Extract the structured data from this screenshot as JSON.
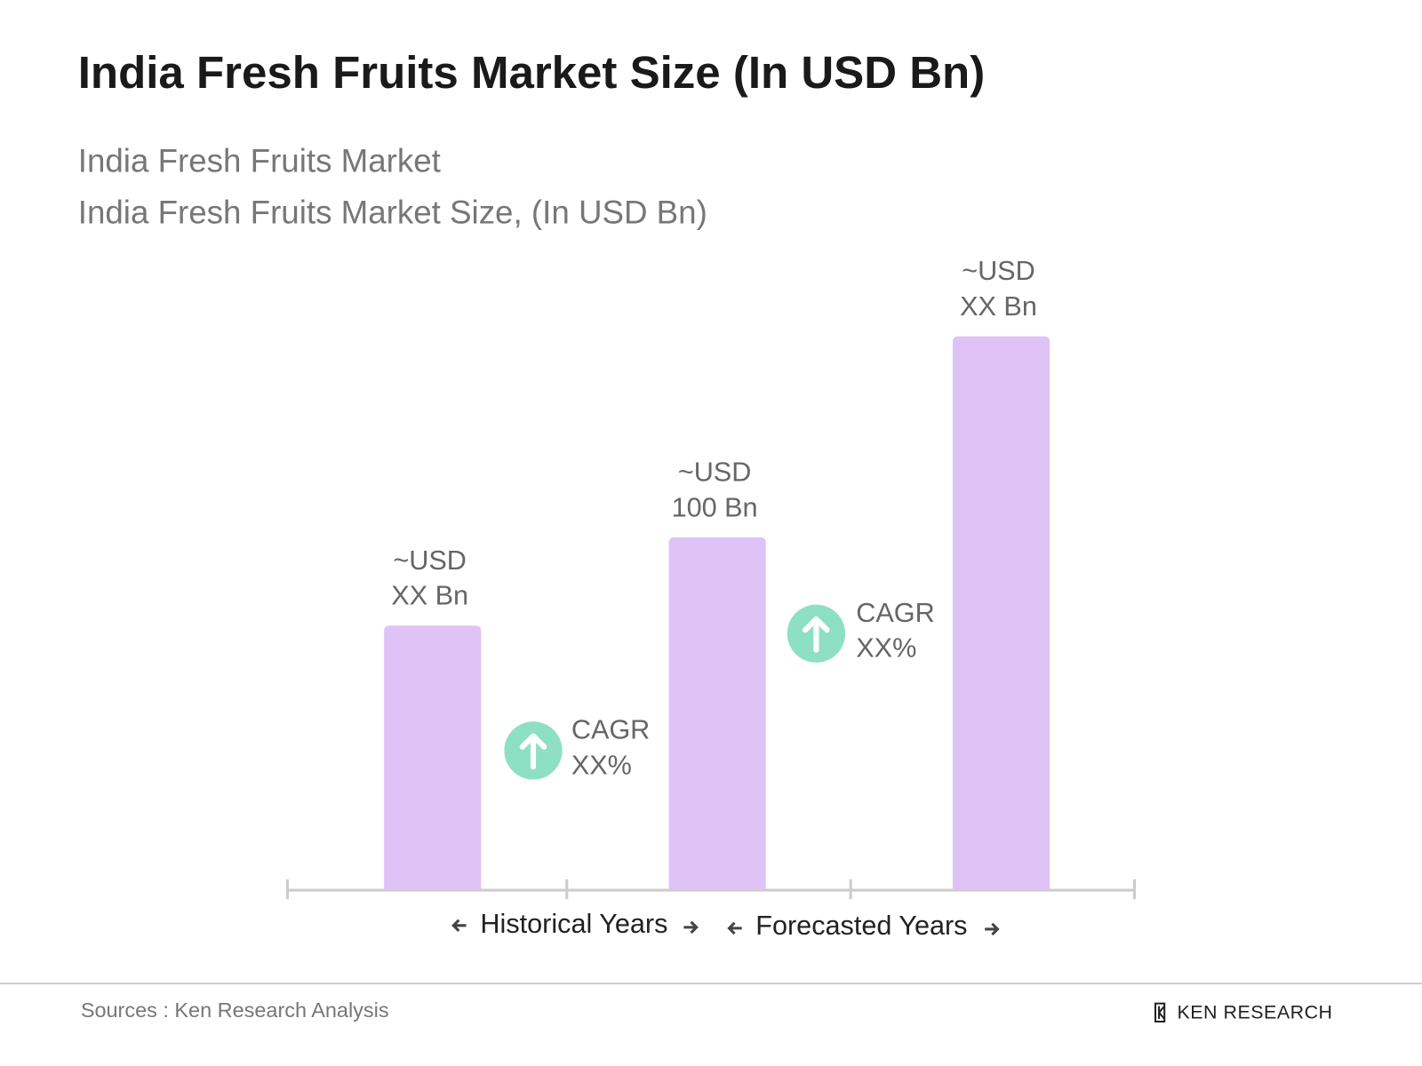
{
  "chart_data": {
    "type": "bar",
    "title": "India Fresh Fruits Market Size (In USD Bn)",
    "subtitle": [
      "India Fresh Fruits Market",
      "India Fresh Fruits Market Size, (In USD Bn)"
    ],
    "categories": [
      null,
      null,
      null
    ],
    "values": [
      75,
      100,
      157
    ],
    "value_labels": [
      [
        "~USD",
        "XX Bn"
      ],
      [
        "~USD",
        "100 Bn"
      ],
      [
        "~USD",
        "XX Bn"
      ]
    ],
    "color": "#dfc3f7",
    "annotations": [
      [
        "CAGR",
        "XX%"
      ],
      [
        "CAGR",
        "XX%"
      ]
    ],
    "annotation_color": "#8ee0c4",
    "periods": [
      "Historical Years",
      "Forecasted Years"
    ],
    "source": "Sources : Ken Research Analysis",
    "logo": "KEN RESEARCH"
  }
}
